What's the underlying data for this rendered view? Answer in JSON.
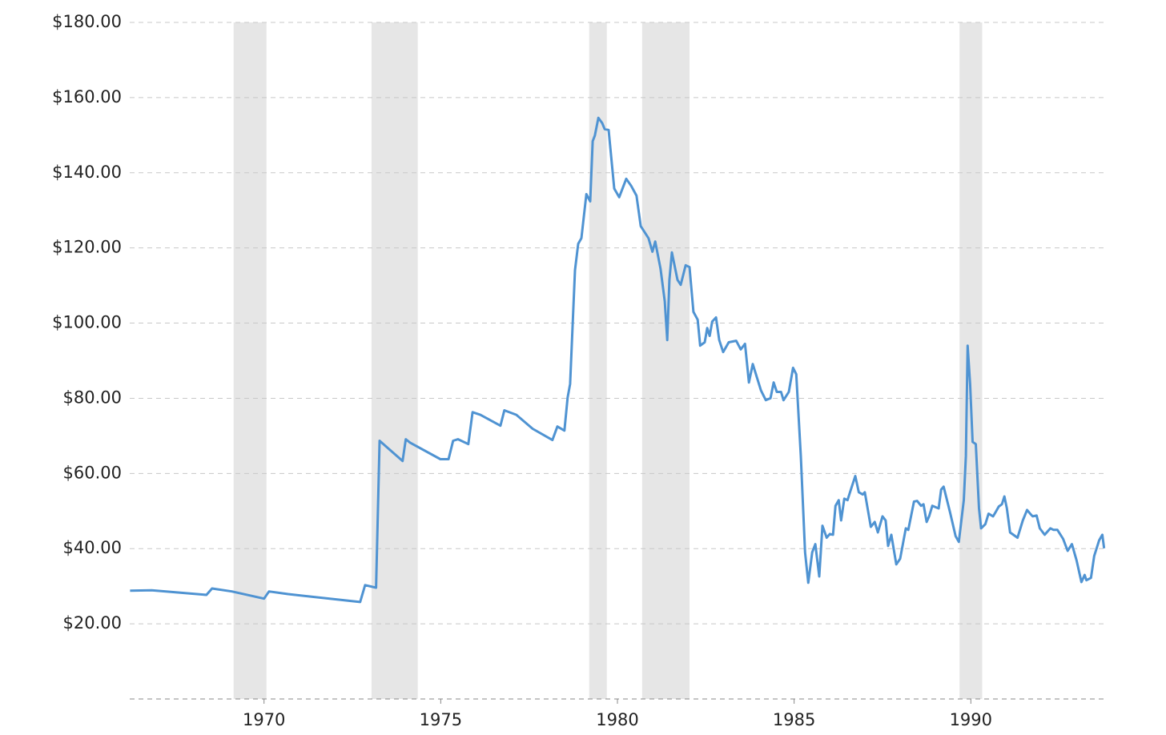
{
  "chart_data": {
    "type": "line",
    "x": [
      1966.21,
      1966.82,
      1968.37,
      1968.53,
      1969.09,
      1970.0,
      1970.14,
      1970.68,
      1972.72,
      1972.86,
      1973.17,
      1973.27,
      1973.45,
      1973.92,
      1974.01,
      1974.13,
      1974.99,
      1975.22,
      1975.35,
      1975.49,
      1975.78,
      1975.9,
      1976.12,
      1976.69,
      1976.8,
      1977.14,
      1977.6,
      1978.16,
      1978.3,
      1978.5,
      1978.59,
      1978.66,
      1978.8,
      1978.89,
      1978.98,
      1979.12,
      1979.23,
      1979.3,
      1979.36,
      1979.46,
      1979.57,
      1979.64,
      1979.75,
      1979.91,
      1980.05,
      1980.25,
      1980.39,
      1980.54,
      1980.66,
      1980.88,
      1980.99,
      1981.07,
      1981.22,
      1981.34,
      1981.41,
      1981.47,
      1981.54,
      1981.7,
      1981.79,
      1981.93,
      1982.04,
      1982.15,
      1982.27,
      1982.34,
      1982.47,
      1982.54,
      1982.61,
      1982.68,
      1982.79,
      1982.88,
      1982.99,
      1983.15,
      1983.36,
      1983.49,
      1983.61,
      1983.72,
      1983.83,
      1984.06,
      1984.2,
      1984.33,
      1984.42,
      1984.51,
      1984.63,
      1984.7,
      1984.85,
      1984.97,
      1985.06,
      1985.19,
      1985.31,
      1985.4,
      1985.51,
      1985.6,
      1985.71,
      1985.8,
      1985.92,
      1986.01,
      1986.1,
      1986.17,
      1986.26,
      1986.33,
      1986.42,
      1986.51,
      1986.62,
      1986.73,
      1986.83,
      1986.94,
      1987.0,
      1987.17,
      1987.28,
      1987.37,
      1987.5,
      1987.59,
      1987.66,
      1987.75,
      1987.89,
      1988.0,
      1988.16,
      1988.23,
      1988.39,
      1988.48,
      1988.59,
      1988.66,
      1988.75,
      1988.82,
      1988.91,
      1989.09,
      1989.16,
      1989.23,
      1989.41,
      1989.57,
      1989.66,
      1989.8,
      1989.86,
      1989.91,
      1989.98,
      1990.05,
      1990.14,
      1990.23,
      1990.29,
      1990.41,
      1990.5,
      1990.63,
      1990.7,
      1990.79,
      1990.88,
      1990.95,
      1991.02,
      1991.11,
      1991.32,
      1991.47,
      1991.59,
      1991.68,
      1991.75,
      1991.86,
      1991.95,
      1992.09,
      1992.25,
      1992.34,
      1992.45,
      1992.61,
      1992.74,
      1992.86,
      1992.99,
      1993.13,
      1993.22,
      1993.27,
      1993.4,
      1993.49,
      1993.63,
      1993.72,
      1993.77
    ],
    "values": [
      28.8,
      28.9,
      27.7,
      29.4,
      28.6,
      26.7,
      28.6,
      27.9,
      25.8,
      30.3,
      29.6,
      68.7,
      67.2,
      63.3,
      69.1,
      68.2,
      63.8,
      63.8,
      68.7,
      69.1,
      67.8,
      76.3,
      75.6,
      72.7,
      76.8,
      75.6,
      71.9,
      68.9,
      72.5,
      71.4,
      80.2,
      83.8,
      114.1,
      121.1,
      122.6,
      134.3,
      132.4,
      148.4,
      149.9,
      154.6,
      153.2,
      151.6,
      151.4,
      135.8,
      133.5,
      138.4,
      136.5,
      133.9,
      125.8,
      122.6,
      119,
      121.7,
      114.5,
      105.8,
      95.5,
      111.5,
      118.8,
      111.5,
      110.2,
      115.4,
      114.9,
      103,
      100.9,
      94,
      94.9,
      98.7,
      96.6,
      100.4,
      101.5,
      95.5,
      92.3,
      94.9,
      95.3,
      93,
      94.5,
      84.2,
      89.1,
      82.1,
      79.5,
      80,
      84.2,
      81.7,
      81.7,
      79.5,
      81.7,
      88.1,
      86.4,
      64.6,
      39,
      30.9,
      39,
      41.2,
      32.6,
      46.1,
      42.9,
      43.9,
      43.7,
      51.4,
      52.9,
      47.5,
      53.3,
      52.9,
      56.1,
      59.3,
      55,
      54.4,
      55,
      45.8,
      47.1,
      44.3,
      48.6,
      47.5,
      40.7,
      43.7,
      35.8,
      37.3,
      45.4,
      45,
      52.5,
      52.7,
      51.4,
      51.8,
      47.1,
      48.6,
      51.4,
      50.7,
      55.7,
      56.5,
      49.7,
      43.3,
      41.8,
      52.9,
      64.6,
      94,
      83.8,
      68.4,
      67.8,
      50.7,
      45.4,
      46.5,
      49.3,
      48.6,
      49.7,
      51.2,
      51.8,
      53.9,
      50.7,
      44.3,
      42.9,
      47.5,
      50.3,
      49.3,
      48.6,
      48.8,
      45.4,
      43.7,
      45.4,
      45,
      45,
      42.6,
      39.4,
      41.2,
      36.9,
      31.1,
      33,
      31.6,
      32.2,
      38,
      42.2,
      43.7,
      40.1
    ],
    "color": "#4f93d2",
    "recessions": [
      [
        1969.14,
        1970.07
      ],
      [
        1973.04,
        1974.35
      ],
      [
        1979.2,
        1979.7
      ],
      [
        1980.7,
        1982.04
      ],
      [
        1989.68,
        1990.32
      ]
    ],
    "recession_color": "#e6e6e6",
    "xlim": [
      1966.2,
      1993.8
    ],
    "xticks": [
      1970,
      1975,
      1980,
      1985,
      1990
    ],
    "ylim": [
      0,
      180
    ],
    "yticks": [
      {
        "value": 20,
        "label": "$20.00"
      },
      {
        "value": 40,
        "label": "$40.00"
      },
      {
        "value": 60,
        "label": "$60.00"
      },
      {
        "value": 80,
        "label": "$80.00"
      },
      {
        "value": 100,
        "label": "$100.00"
      },
      {
        "value": 120,
        "label": "$120.00"
      },
      {
        "value": 140,
        "label": "$140.00"
      },
      {
        "value": 160,
        "label": "$160.00"
      },
      {
        "value": 180,
        "label": "$180.00"
      }
    ],
    "grid": true
  }
}
